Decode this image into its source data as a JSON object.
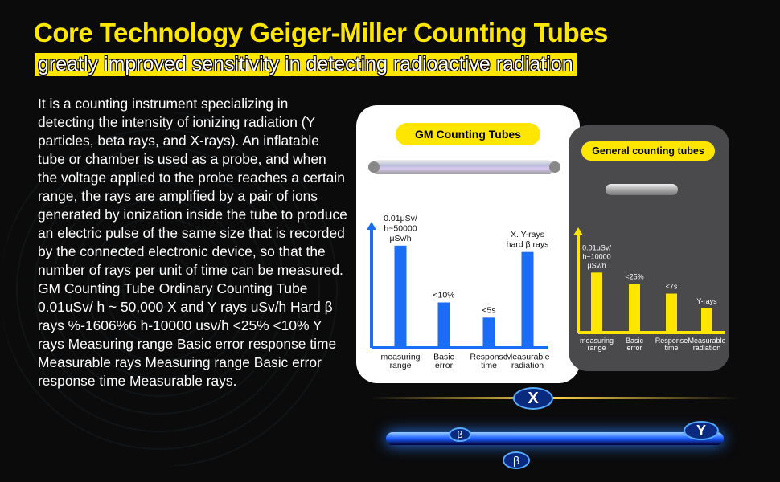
{
  "header": {
    "title": "Core Technology Geiger-Miller Counting Tubes",
    "subtitle": "greatly improved sensitivity in detecting radioactive radiation"
  },
  "body_text": "It is a counting instrument specializing in detecting the intensity of ionizing radiation (Y particles, beta rays, and X-rays). An inflatable tube or chamber is used as a probe, and when the voltage applied to the probe reaches a certain range, the rays are amplified by a pair of ions generated by ionization inside the tube to produce an electric pulse of the same size that is recorded by the connected electronic device, so that the number of rays per unit of time can be measured. GM Counting Tube Ordinary Counting Tube 0.01uSv/ h ~ 50,000 X and Y rays uSv/h Hard β rays %-1606%6 h-10000 usv/h <25% <10% Y rays Measuring range Basic error response time Measurable rays Measuring range Basic error response time Measurable rays.",
  "colors": {
    "accent": "#ffe600",
    "gm_bar": "#1a6ef5",
    "general_bar": "#ffe600"
  },
  "bottom_labels": [
    "X",
    "Y",
    "β",
    "β"
  ],
  "chart_data": [
    {
      "type": "bar",
      "title": "GM Counting Tubes",
      "categories": [
        [
          "measuring",
          "range"
        ],
        [
          "Basic",
          "error"
        ],
        [
          "Response",
          "time"
        ],
        [
          "Measurable",
          "radiation"
        ]
      ],
      "values": [
        0.81,
        0.36,
        0.24,
        0.76
      ],
      "data_labels": [
        [
          "0.01μSv/",
          "h~50000",
          "μSv/h"
        ],
        [
          "<10%"
        ],
        [
          "<5s"
        ],
        [
          "X. Y-rays",
          "hard β rays"
        ]
      ],
      "ylim": [
        0,
        1
      ],
      "grid": false
    },
    {
      "type": "bar",
      "title": "General counting tubes",
      "categories": [
        [
          "measuring",
          "range"
        ],
        [
          "Basic",
          "error"
        ],
        [
          "Response",
          "time"
        ],
        [
          "Measurable",
          "radiation"
        ]
      ],
      "values": [
        0.57,
        0.46,
        0.37,
        0.23
      ],
      "data_labels": [
        [
          "0.01μSv/",
          "h~10000",
          "μSv/h"
        ],
        [
          "<25%"
        ],
        [
          "<7s"
        ],
        [
          "Y-rays"
        ]
      ],
      "ylim": [
        0,
        1
      ],
      "grid": false
    }
  ]
}
